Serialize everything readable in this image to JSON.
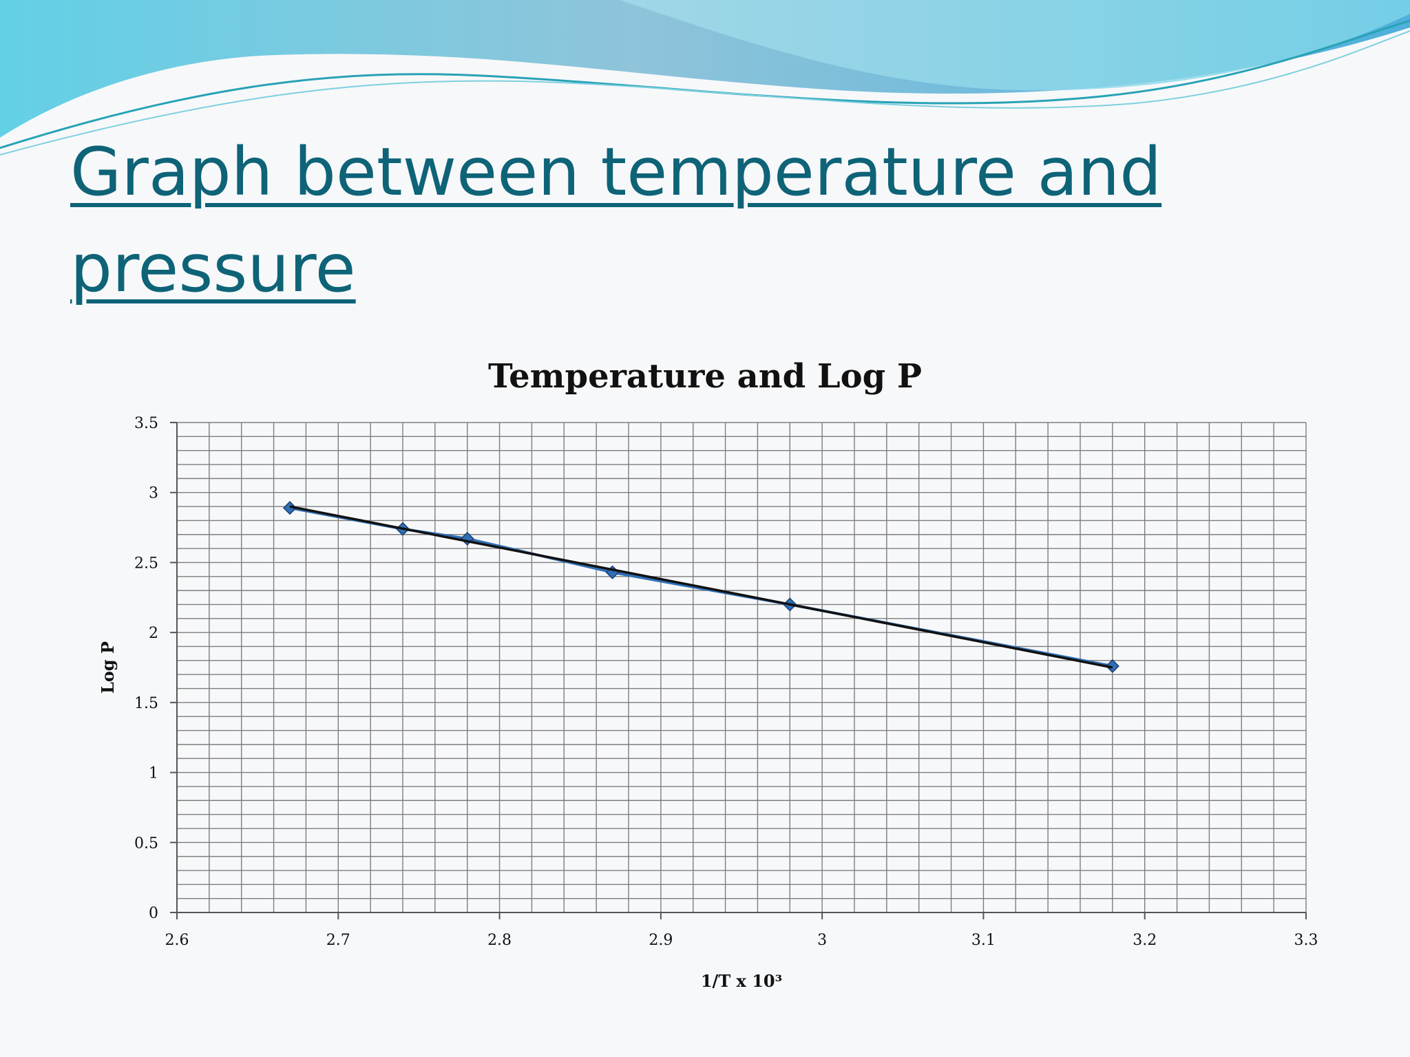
{
  "slide": {
    "title": "Graph between temperature and pressure"
  },
  "chart_data": {
    "type": "line",
    "title": "Temperature and Log P",
    "xlabel": "1/T x 10³",
    "ylabel": "Log P",
    "xlim": [
      2.6,
      3.3
    ],
    "ylim": [
      0,
      3.5
    ],
    "xticks": [
      "2.6",
      "2.7",
      "2.8",
      "2.9",
      "3",
      "3.1",
      "3.2",
      "3.3"
    ],
    "yticks": [
      "0",
      "0.5",
      "1",
      "1.5",
      "2",
      "2.5",
      "3",
      "3.5"
    ],
    "grid": true,
    "legend": "none",
    "series": [
      {
        "color": "#2f6fb5",
        "marker": "diamond",
        "points": [
          {
            "x": 2.67,
            "y": 2.89
          },
          {
            "x": 2.74,
            "y": 2.74
          },
          {
            "x": 2.78,
            "y": 2.67
          },
          {
            "x": 2.87,
            "y": 2.43
          },
          {
            "x": 2.98,
            "y": 2.2
          },
          {
            "x": 3.18,
            "y": 1.76
          }
        ]
      }
    ],
    "trendline": {
      "color": "#111111",
      "from": {
        "x": 2.67,
        "y": 2.9
      },
      "to": {
        "x": 3.18,
        "y": 1.75
      }
    }
  },
  "colors": {
    "title": "#0e6377",
    "grid": "#7d7d7d",
    "accent_wave": "#5ec9de"
  }
}
